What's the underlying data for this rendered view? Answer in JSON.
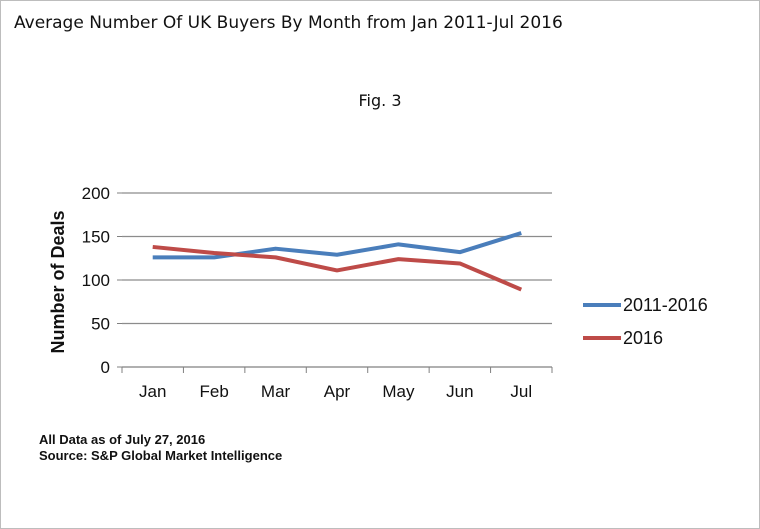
{
  "title": "Average Number Of UK Buyers By Month from Jan 2011-Jul 2016",
  "figure_label": "Fig. 3",
  "footnotes": {
    "date_note": "All Data as of July 27, 2016",
    "source": "Source:  S&P Global Market Intelligence"
  },
  "chart_data": {
    "type": "line",
    "categories": [
      "Jan",
      "Feb",
      "Mar",
      "Apr",
      "May",
      "Jun",
      "Jul"
    ],
    "ylabel": "Number of Deals",
    "ylim": [
      0,
      200
    ],
    "yticks": [
      0,
      50,
      100,
      150,
      200
    ],
    "grid": true,
    "legend_position": "right",
    "series": [
      {
        "name": "2011-2016",
        "color": "#4a7ebb",
        "values": [
          126,
          126,
          136,
          129,
          141,
          132,
          154
        ]
      },
      {
        "name": "2016",
        "color": "#be4b48",
        "values": [
          138,
          131,
          126,
          111,
          124,
          119,
          89
        ]
      }
    ]
  }
}
